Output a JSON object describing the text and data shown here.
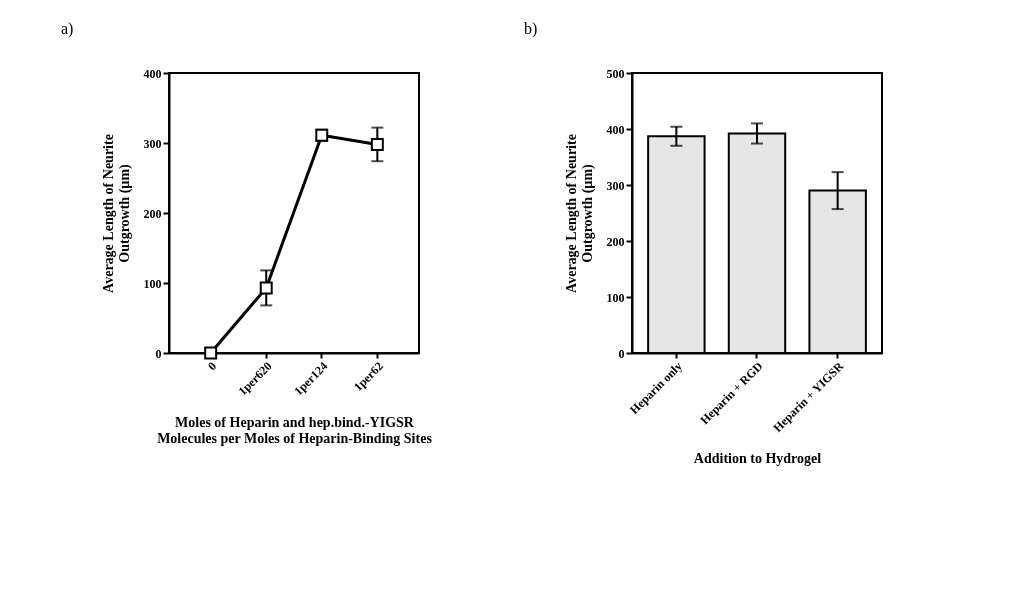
{
  "chart_data": [
    {
      "type": "line",
      "title": "a)",
      "xlabel": "Moles of Heparin and hep.bind.-YIGSR\nMolecules per Moles of Heparin-Binding Sites",
      "ylabel": "Average Length of Neurite\nOutgrowth (µm)",
      "categories": [
        "0",
        "1per620",
        "1per124",
        "1per62"
      ],
      "series": [
        {
          "color": "#000000",
          "values": [
            0,
            93,
            311,
            298
          ],
          "errors": [
            null,
            25,
            8,
            24
          ]
        }
      ],
      "marker": "square",
      "ylim": [
        0,
        400
      ],
      "yticks": [
        0,
        100,
        200,
        300,
        400
      ],
      "grid": false
    },
    {
      "type": "bar",
      "title": "b)",
      "xlabel": "Addition to Hydrogel",
      "ylabel": "Average Length of Neurite\nOutgrowth (µm)",
      "categories": [
        "Heparin only",
        "Heparin + RGD",
        "Heparin + YIGSR"
      ],
      "series": [
        {
          "color": "#e6e6e6",
          "values": [
            387,
            392,
            290
          ],
          "errors": [
            17,
            18,
            33
          ]
        }
      ],
      "ylim": [
        0,
        500
      ],
      "yticks": [
        0,
        100,
        200,
        300,
        400,
        500
      ],
      "grid": false
    }
  ]
}
